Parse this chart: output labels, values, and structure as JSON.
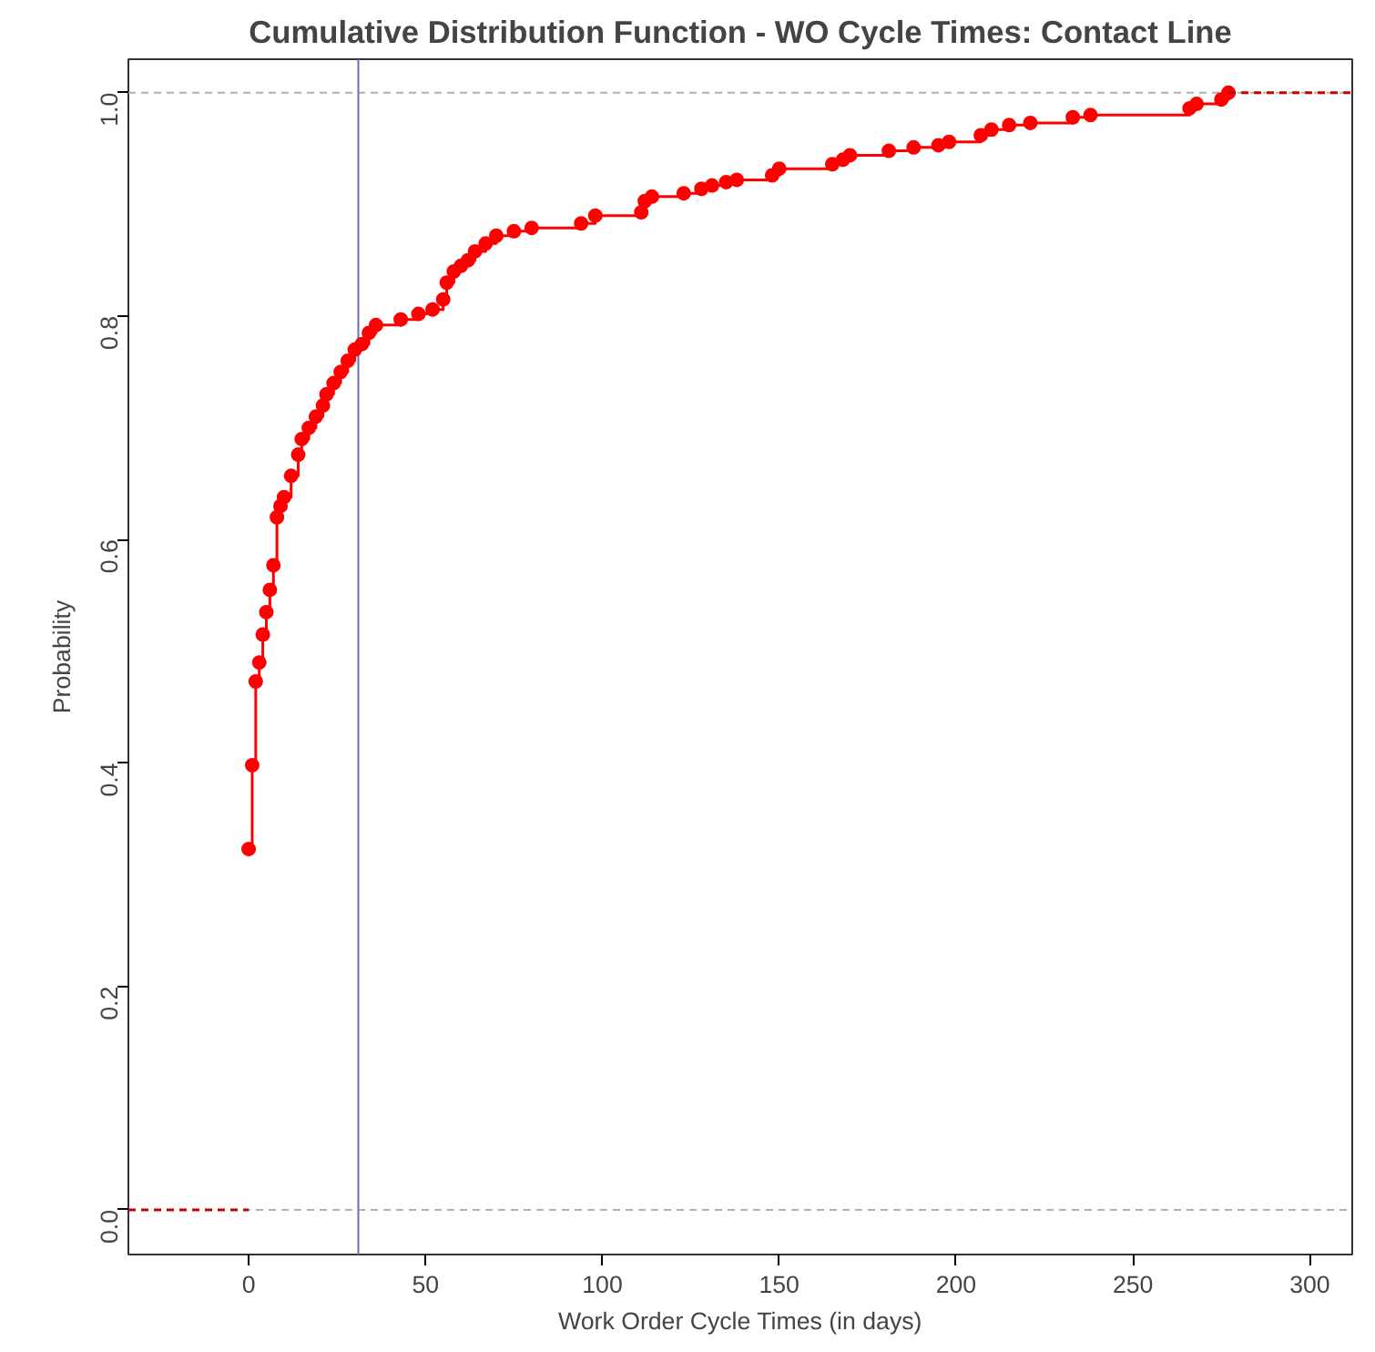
{
  "chart_data": {
    "type": "step",
    "title": "Cumulative Distribution Function - WO Cycle Times: Contact Line",
    "xlabel": "Work Order Cycle Times (in days)",
    "ylabel": "Probability",
    "xlim": [
      -34,
      312
    ],
    "ylim": [
      -0.04,
      1.03
    ],
    "xticks": [
      0,
      50,
      100,
      150,
      200,
      250,
      300
    ],
    "yticks": [
      {
        "value": 0,
        "label": "0.0"
      },
      {
        "value": 0.2,
        "label": "0.2"
      },
      {
        "value": 0.4,
        "label": "0.4"
      },
      {
        "value": 0.6,
        "label": "0.6"
      },
      {
        "value": 0.8,
        "label": "0.8"
      },
      {
        "value": 1,
        "label": "1.0"
      }
    ],
    "grid": false,
    "marker": "circle",
    "line_style": "solid",
    "series": [
      {
        "color": "#ff0000",
        "x": [
          0,
          1,
          2,
          3,
          4,
          5,
          6,
          7,
          8,
          9,
          10,
          12,
          14,
          15,
          17,
          19,
          21,
          22,
          24,
          26,
          28,
          30,
          32,
          34,
          36,
          43,
          48,
          52,
          55,
          56,
          58,
          60,
          62,
          64,
          67,
          70,
          75,
          80,
          94,
          98,
          111,
          112,
          114,
          123,
          128,
          131,
          135,
          138,
          148,
          150,
          165,
          168,
          170,
          181,
          188,
          195,
          198,
          207,
          210,
          215,
          221,
          233,
          238,
          266,
          268,
          275,
          277
        ],
        "values": [
          0.323,
          0.398,
          0.473,
          0.49,
          0.515,
          0.535,
          0.555,
          0.577,
          0.62,
          0.63,
          0.638,
          0.657,
          0.676,
          0.69,
          0.7,
          0.71,
          0.72,
          0.73,
          0.74,
          0.75,
          0.76,
          0.77,
          0.775,
          0.785,
          0.792,
          0.797,
          0.802,
          0.806,
          0.815,
          0.83,
          0.84,
          0.845,
          0.85,
          0.858,
          0.865,
          0.872,
          0.876,
          0.879,
          0.883,
          0.89,
          0.893,
          0.903,
          0.907,
          0.91,
          0.914,
          0.917,
          0.92,
          0.922,
          0.926,
          0.932,
          0.936,
          0.94,
          0.944,
          0.948,
          0.951,
          0.953,
          0.956,
          0.962,
          0.967,
          0.971,
          0.973,
          0.978,
          0.98,
          0.986,
          0.99,
          0.994,
          1.0
        ]
      },
      {
        "color": "#cc0000",
        "type": "line",
        "marker": "none",
        "line_style": "dashed",
        "x": [
          -34,
          0
        ],
        "values": [
          0,
          0
        ]
      },
      {
        "color": "#cc0000",
        "type": "line",
        "marker": "none",
        "line_style": "dashed",
        "x": [
          277,
          312
        ],
        "values": [
          1,
          1
        ]
      }
    ],
    "ref_lines": [
      {
        "axis": "y",
        "value": 0,
        "color": "#b0b0b0",
        "line_style": "dashed"
      },
      {
        "axis": "y",
        "value": 1,
        "color": "#b0b0b0",
        "line_style": "dashed"
      },
      {
        "axis": "x",
        "value": 31,
        "color": "#6b6bbf",
        "line_style": "solid"
      }
    ]
  }
}
